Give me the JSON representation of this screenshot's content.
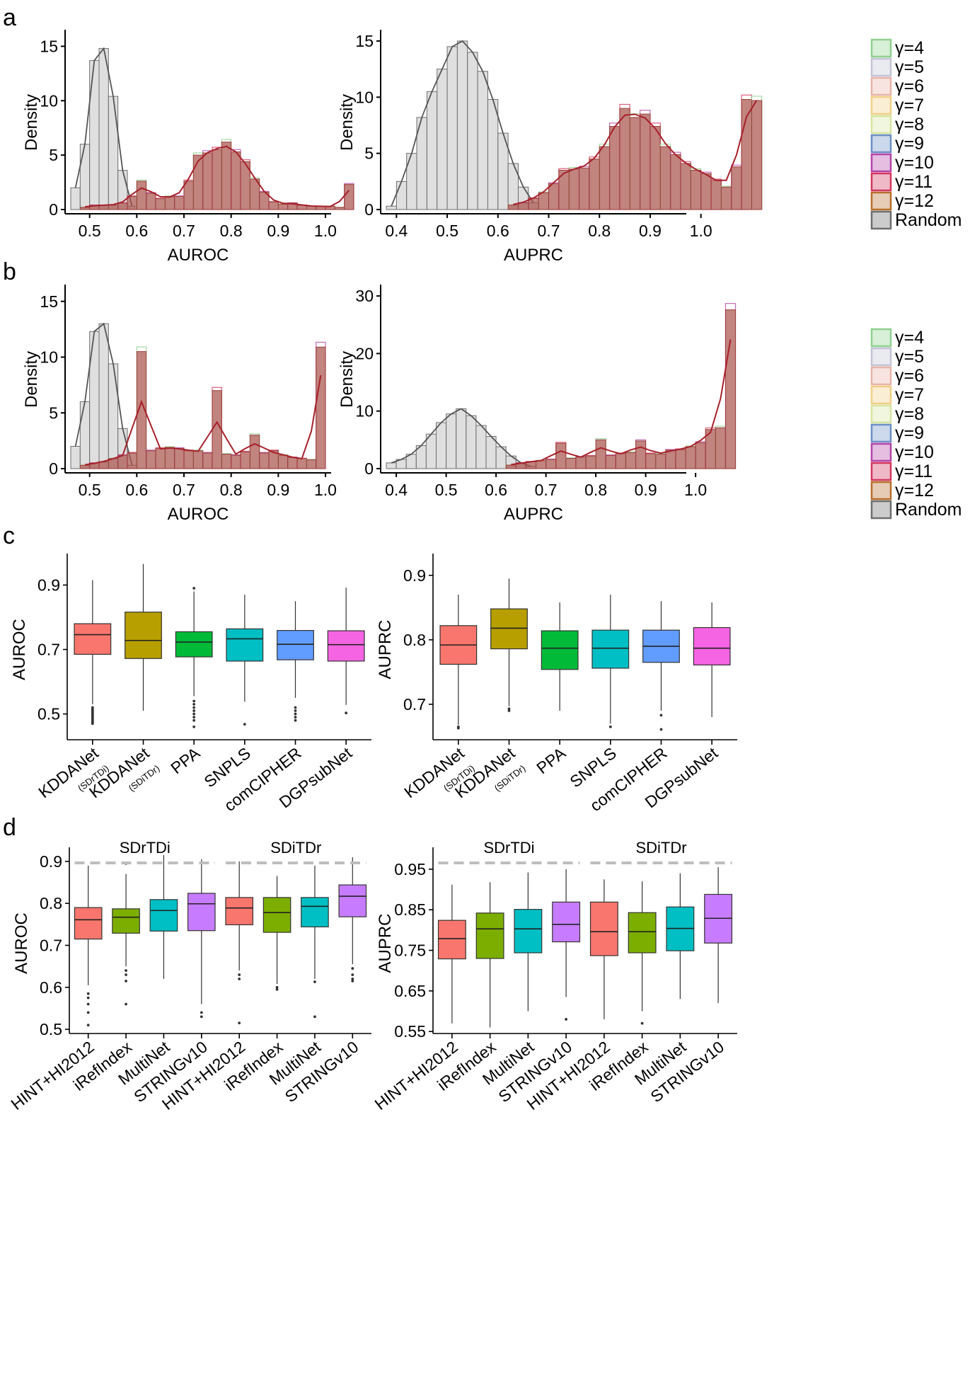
{
  "panel_labels": [
    "a",
    "b",
    "c",
    "d"
  ],
  "legend_entries": [
    "γ=4",
    "γ=5",
    "γ=6",
    "γ=7",
    "γ=8",
    "γ=9",
    "γ=10",
    "γ=11",
    "γ=12",
    "Random"
  ],
  "legend_colors": [
    "#8fd18f",
    "#c4c4d6",
    "#e8b3a8",
    "#f0cf85",
    "#d6e4a1",
    "#6d8fc6",
    "#b444a8",
    "#d3365e",
    "#b86d2a",
    "#6e6e6e"
  ],
  "chart_data": [
    {
      "id": "a-left",
      "type": "histogram",
      "xlabel": "AUROC",
      "ylabel": "Density",
      "xlim": [
        0.46,
        1.0
      ],
      "ylim": [
        0,
        16
      ],
      "x_ticks": [
        0.5,
        0.6,
        0.7,
        0.8,
        0.9,
        1.0
      ],
      "y_ticks": [
        0,
        5,
        10,
        15
      ],
      "x_tick_labels": [
        "0.5",
        "0.6",
        "0.7",
        "0.8",
        "0.9",
        "1.0"
      ],
      "y_tick_labels": [
        "0",
        "5",
        "10",
        "15"
      ],
      "bin_width": 0.02,
      "random": {
        "bins_start": 0.46,
        "values": [
          2.0,
          6.0,
          13.7,
          14.8,
          10.4,
          3.6,
          0.3
        ]
      },
      "gamma": {
        "bins_start": 0.48,
        "values": [
          0.2,
          0.4,
          0.4,
          0.4,
          0.6,
          1.2,
          2.6,
          1.5,
          1.0,
          1.2,
          1.2,
          2.6,
          5.0,
          5.2,
          5.5,
          6.2,
          5.3,
          4.4,
          2.8,
          1.6,
          0.7,
          0.5,
          0.6,
          0.4,
          0.3,
          0.3,
          0.3,
          0.2,
          2.3
        ]
      },
      "legend": "right"
    },
    {
      "id": "a-right",
      "type": "histogram",
      "xlabel": "AUPRC",
      "ylabel": "Density",
      "xlim": [
        0.38,
        0.96
      ],
      "ylim": [
        0,
        15.5
      ],
      "x_ticks": [
        0.4,
        0.5,
        0.6,
        0.7,
        0.8,
        0.9,
        1.0
      ],
      "y_ticks": [
        0,
        5,
        10,
        15
      ],
      "x_tick_labels": [
        "0.4",
        "0.5",
        "0.6",
        "0.7",
        "0.8",
        "0.9",
        "1.0"
      ],
      "y_tick_labels": [
        "0",
        "5",
        "10",
        "15"
      ],
      "bin_width": 0.02,
      "random": {
        "bins_start": 0.38,
        "values": [
          0.3,
          2.5,
          5.0,
          8.2,
          10.5,
          12.5,
          14.5,
          15.0,
          14.0,
          12.3,
          9.8,
          6.8,
          4.1,
          2.0,
          0.6
        ]
      },
      "gamma": {
        "bins_start": 0.62,
        "values": [
          0.4,
          0.6,
          1.0,
          1.5,
          2.3,
          3.5,
          3.6,
          3.7,
          4.5,
          5.6,
          7.4,
          9.0,
          8.2,
          8.5,
          7.4,
          5.6,
          4.9,
          4.1,
          3.5,
          3.2,
          2.6,
          2.0,
          3.8,
          9.8,
          9.7
        ]
      },
      "legend": "right"
    },
    {
      "id": "b-left",
      "type": "histogram",
      "xlabel": "AUROC",
      "ylabel": "Density",
      "xlim": [
        0.46,
        1.0
      ],
      "ylim": [
        0,
        16
      ],
      "x_ticks": [
        0.5,
        0.6,
        0.7,
        0.8,
        0.9,
        1.0
      ],
      "y_ticks": [
        0,
        5,
        10,
        15
      ],
      "x_tick_labels": [
        "0.5",
        "0.6",
        "0.7",
        "0.8",
        "0.9",
        "1.0"
      ],
      "y_tick_labels": [
        "0",
        "5",
        "10",
        "15"
      ],
      "bin_width": 0.02,
      "random": {
        "bins_start": 0.46,
        "values": [
          2.0,
          6.0,
          12.3,
          13.0,
          9.4,
          3.6,
          0.3
        ]
      },
      "gamma": {
        "bins_start": 0.48,
        "values": [
          0.3,
          0.5,
          0.6,
          0.9,
          1.2,
          1.4,
          10.5,
          1.6,
          1.8,
          1.9,
          1.8,
          1.6,
          1.6,
          1.4,
          7.0,
          1.3,
          1.2,
          1.5,
          3.0,
          1.4,
          1.6,
          1.2,
          1.0,
          0.9,
          0.8,
          10.9
        ]
      },
      "legend": "right"
    },
    {
      "id": "b-right",
      "type": "histogram",
      "xlabel": "AUPRC",
      "ylabel": "Density",
      "xlim": [
        0.38,
        0.97
      ],
      "ylim": [
        0,
        31
      ],
      "x_ticks": [
        0.4,
        0.5,
        0.6,
        0.7,
        0.8,
        0.9,
        1.0
      ],
      "y_ticks": [
        0,
        10,
        20,
        30
      ],
      "x_tick_labels": [
        "0.4",
        "0.5",
        "0.6",
        "0.7",
        "0.8",
        "0.9",
        "1.0"
      ],
      "y_tick_labels": [
        "0",
        "10",
        "20",
        "30"
      ],
      "bin_width": 0.02,
      "random": {
        "bins_start": 0.38,
        "values": [
          1.0,
          1.6,
          2.5,
          4.0,
          6.0,
          8.0,
          9.5,
          10.4,
          9.2,
          7.5,
          5.6,
          3.8,
          2.2,
          1.0,
          0.4
        ]
      },
      "gamma": {
        "bins_start": 0.62,
        "values": [
          0.6,
          1.0,
          1.2,
          1.4,
          1.6,
          4.4,
          1.8,
          2.0,
          2.2,
          5.0,
          2.3,
          2.6,
          2.8,
          4.8,
          2.6,
          2.5,
          3.2,
          3.3,
          3.8,
          4.5,
          6.8,
          7.1,
          27.6
        ]
      },
      "legend": "right"
    },
    {
      "id": "c-left",
      "type": "box",
      "ylabel": "AUROC",
      "ylim": [
        0.42,
        0.98
      ],
      "y_ticks": [
        0.5,
        0.7,
        0.9
      ],
      "y_tick_labels": [
        "0.5",
        "0.7",
        "0.9"
      ],
      "categories": [
        "KDDANet",
        "KDDANet",
        "PPA",
        "SNPLS",
        "comCIPHER",
        "DGPsubNet"
      ],
      "subscripts": [
        "(SDrTDi)",
        "(SDiTDr)",
        "",
        "",
        "",
        ""
      ],
      "colors": [
        "#f8766d",
        "#b79f00",
        "#00ba38",
        "#00bfc4",
        "#619cff",
        "#f564e3"
      ],
      "boxes": [
        {
          "q1": 0.685,
          "median": 0.746,
          "q3": 0.78,
          "whisker_low": 0.53,
          "whisker_high": 0.915,
          "outliers": [
            0.47,
            0.475,
            0.48,
            0.485,
            0.49,
            0.495,
            0.5,
            0.505,
            0.51,
            0.515,
            0.52
          ]
        },
        {
          "q1": 0.672,
          "median": 0.728,
          "q3": 0.816,
          "whisker_low": 0.51,
          "whisker_high": 0.965,
          "outliers": []
        },
        {
          "q1": 0.677,
          "median": 0.723,
          "q3": 0.755,
          "whisker_low": 0.555,
          "whisker_high": 0.88,
          "outliers": [
            0.46,
            0.48,
            0.49,
            0.5,
            0.51,
            0.52,
            0.53,
            0.54,
            0.89
          ]
        },
        {
          "q1": 0.664,
          "median": 0.733,
          "q3": 0.764,
          "whisker_low": 0.538,
          "whisker_high": 0.87,
          "outliers": [
            0.468
          ]
        },
        {
          "q1": 0.668,
          "median": 0.716,
          "q3": 0.759,
          "whisker_low": 0.55,
          "whisker_high": 0.85,
          "outliers": [
            0.48,
            0.49,
            0.5,
            0.51,
            0.52
          ]
        },
        {
          "q1": 0.664,
          "median": 0.715,
          "q3": 0.758,
          "whisker_low": 0.528,
          "whisker_high": 0.892,
          "outliers": [
            0.503
          ]
        }
      ]
    },
    {
      "id": "c-right",
      "type": "box",
      "ylabel": "AUPRC",
      "ylim": [
        0.645,
        0.925
      ],
      "y_ticks": [
        0.7,
        0.8,
        0.9
      ],
      "y_tick_labels": [
        "0.7",
        "0.8",
        "0.9"
      ],
      "categories": [
        "KDDANet",
        "KDDANet",
        "PPA",
        "SNPLS",
        "comCIPHER",
        "DGPsubNet"
      ],
      "subscripts": [
        "(SDrTDi)",
        "(SDiTDr)",
        "",
        "",
        "",
        ""
      ],
      "colors": [
        "#f8766d",
        "#b79f00",
        "#00ba38",
        "#00bfc4",
        "#619cff",
        "#f564e3"
      ],
      "boxes": [
        {
          "q1": 0.762,
          "median": 0.792,
          "q3": 0.822,
          "whisker_low": 0.668,
          "whisker_high": 0.87,
          "outliers": [
            0.663,
            0.665
          ]
        },
        {
          "q1": 0.786,
          "median": 0.818,
          "q3": 0.848,
          "whisker_low": 0.697,
          "whisker_high": 0.895,
          "outliers": [
            0.69,
            0.693
          ]
        },
        {
          "q1": 0.754,
          "median": 0.787,
          "q3": 0.814,
          "whisker_low": 0.69,
          "whisker_high": 0.858,
          "outliers": []
        },
        {
          "q1": 0.756,
          "median": 0.787,
          "q3": 0.815,
          "whisker_low": 0.67,
          "whisker_high": 0.87,
          "outliers": [
            0.665
          ]
        },
        {
          "q1": 0.765,
          "median": 0.79,
          "q3": 0.815,
          "whisker_low": 0.69,
          "whisker_high": 0.86,
          "outliers": [
            0.661,
            0.683
          ]
        },
        {
          "q1": 0.761,
          "median": 0.787,
          "q3": 0.819,
          "whisker_low": 0.68,
          "whisker_high": 0.858,
          "outliers": []
        }
      ]
    },
    {
      "id": "d-left",
      "type": "box",
      "ylabel": "AUROC",
      "ylim": [
        0.49,
        0.92
      ],
      "y_ticks": [
        0.5,
        0.6,
        0.7,
        0.8,
        0.9
      ],
      "y_tick_labels": [
        "0.5",
        "0.6",
        "0.7",
        "0.8",
        "0.9"
      ],
      "categories": [
        "HINT+HI2012",
        "iRefIndex",
        "MultiNet",
        "STRINGv10",
        "HINT+HI2012",
        "iRefIndex",
        "MultiNet",
        "STRINGv10"
      ],
      "groups": [
        {
          "label": "SDrTDi",
          "from": 0,
          "to": 3
        },
        {
          "label": "SDiTDr",
          "from": 4,
          "to": 7
        }
      ],
      "colors": [
        "#f8766d",
        "#7cae00",
        "#00bfc4",
        "#c77cff",
        "#f8766d",
        "#7cae00",
        "#00bfc4",
        "#c77cff"
      ],
      "boxes": [
        {
          "q1": 0.715,
          "median": 0.761,
          "q3": 0.79,
          "whisker_low": 0.605,
          "whisker_high": 0.89,
          "outliers": [
            0.51,
            0.54,
            0.56,
            0.575,
            0.585
          ]
        },
        {
          "q1": 0.729,
          "median": 0.767,
          "q3": 0.787,
          "whisker_low": 0.65,
          "whisker_high": 0.87,
          "outliers": [
            0.56,
            0.615,
            0.63,
            0.64,
            0.895
          ]
        },
        {
          "q1": 0.734,
          "median": 0.783,
          "q3": 0.809,
          "whisker_low": 0.62,
          "whisker_high": 0.915,
          "outliers": []
        },
        {
          "q1": 0.735,
          "median": 0.799,
          "q3": 0.824,
          "whisker_low": 0.56,
          "whisker_high": 0.905,
          "outliers": [
            0.53,
            0.54
          ]
        },
        {
          "q1": 0.749,
          "median": 0.789,
          "q3": 0.814,
          "whisker_low": 0.64,
          "whisker_high": 0.9,
          "outliers": [
            0.515,
            0.62,
            0.63
          ]
        },
        {
          "q1": 0.731,
          "median": 0.778,
          "q3": 0.814,
          "whisker_low": 0.608,
          "whisker_high": 0.865,
          "outliers": [
            0.595,
            0.6
          ]
        },
        {
          "q1": 0.744,
          "median": 0.793,
          "q3": 0.814,
          "whisker_low": 0.62,
          "whisker_high": 0.89,
          "outliers": [
            0.53,
            0.613
          ]
        },
        {
          "q1": 0.768,
          "median": 0.817,
          "q3": 0.844,
          "whisker_low": 0.655,
          "whisker_high": 0.91,
          "outliers": [
            0.615,
            0.62,
            0.63,
            0.645
          ]
        }
      ]
    },
    {
      "id": "d-right",
      "type": "box",
      "ylabel": "AUPRC",
      "ylim": [
        0.545,
        0.99
      ],
      "y_ticks": [
        0.55,
        0.65,
        0.75,
        0.85,
        0.95
      ],
      "y_tick_labels": [
        "0.55",
        "0.65",
        "0.75",
        "0.85",
        "0.95"
      ],
      "categories": [
        "HINT+HI2012",
        "iRefIndex",
        "MultiNet",
        "STRINGv10",
        "HINT+HI2012",
        "iRefIndex",
        "MultiNet",
        "STRINGv10"
      ],
      "groups": [
        {
          "label": "SDrTDi",
          "from": 0,
          "to": 3
        },
        {
          "label": "SDiTDr",
          "from": 4,
          "to": 7
        }
      ],
      "colors": [
        "#f8766d",
        "#7cae00",
        "#00bfc4",
        "#c77cff",
        "#f8766d",
        "#7cae00",
        "#00bfc4",
        "#c77cff"
      ],
      "boxes": [
        {
          "q1": 0.729,
          "median": 0.779,
          "q3": 0.824,
          "whisker_low": 0.57,
          "whisker_high": 0.912,
          "outliers": []
        },
        {
          "q1": 0.73,
          "median": 0.803,
          "q3": 0.842,
          "whisker_low": 0.56,
          "whisker_high": 0.918,
          "outliers": []
        },
        {
          "q1": 0.744,
          "median": 0.803,
          "q3": 0.851,
          "whisker_low": 0.6,
          "whisker_high": 0.942,
          "outliers": []
        },
        {
          "q1": 0.771,
          "median": 0.814,
          "q3": 0.869,
          "whisker_low": 0.635,
          "whisker_high": 0.95,
          "outliers": [
            0.58
          ]
        },
        {
          "q1": 0.737,
          "median": 0.796,
          "q3": 0.869,
          "whisker_low": 0.58,
          "whisker_high": 0.925,
          "outliers": []
        },
        {
          "q1": 0.744,
          "median": 0.796,
          "q3": 0.843,
          "whisker_low": 0.6,
          "whisker_high": 0.92,
          "outliers": [
            0.57
          ]
        },
        {
          "q1": 0.749,
          "median": 0.804,
          "q3": 0.857,
          "whisker_low": 0.63,
          "whisker_high": 0.94,
          "outliers": []
        },
        {
          "q1": 0.768,
          "median": 0.829,
          "q3": 0.888,
          "whisker_low": 0.62,
          "whisker_high": 0.955,
          "outliers": []
        }
      ]
    }
  ]
}
